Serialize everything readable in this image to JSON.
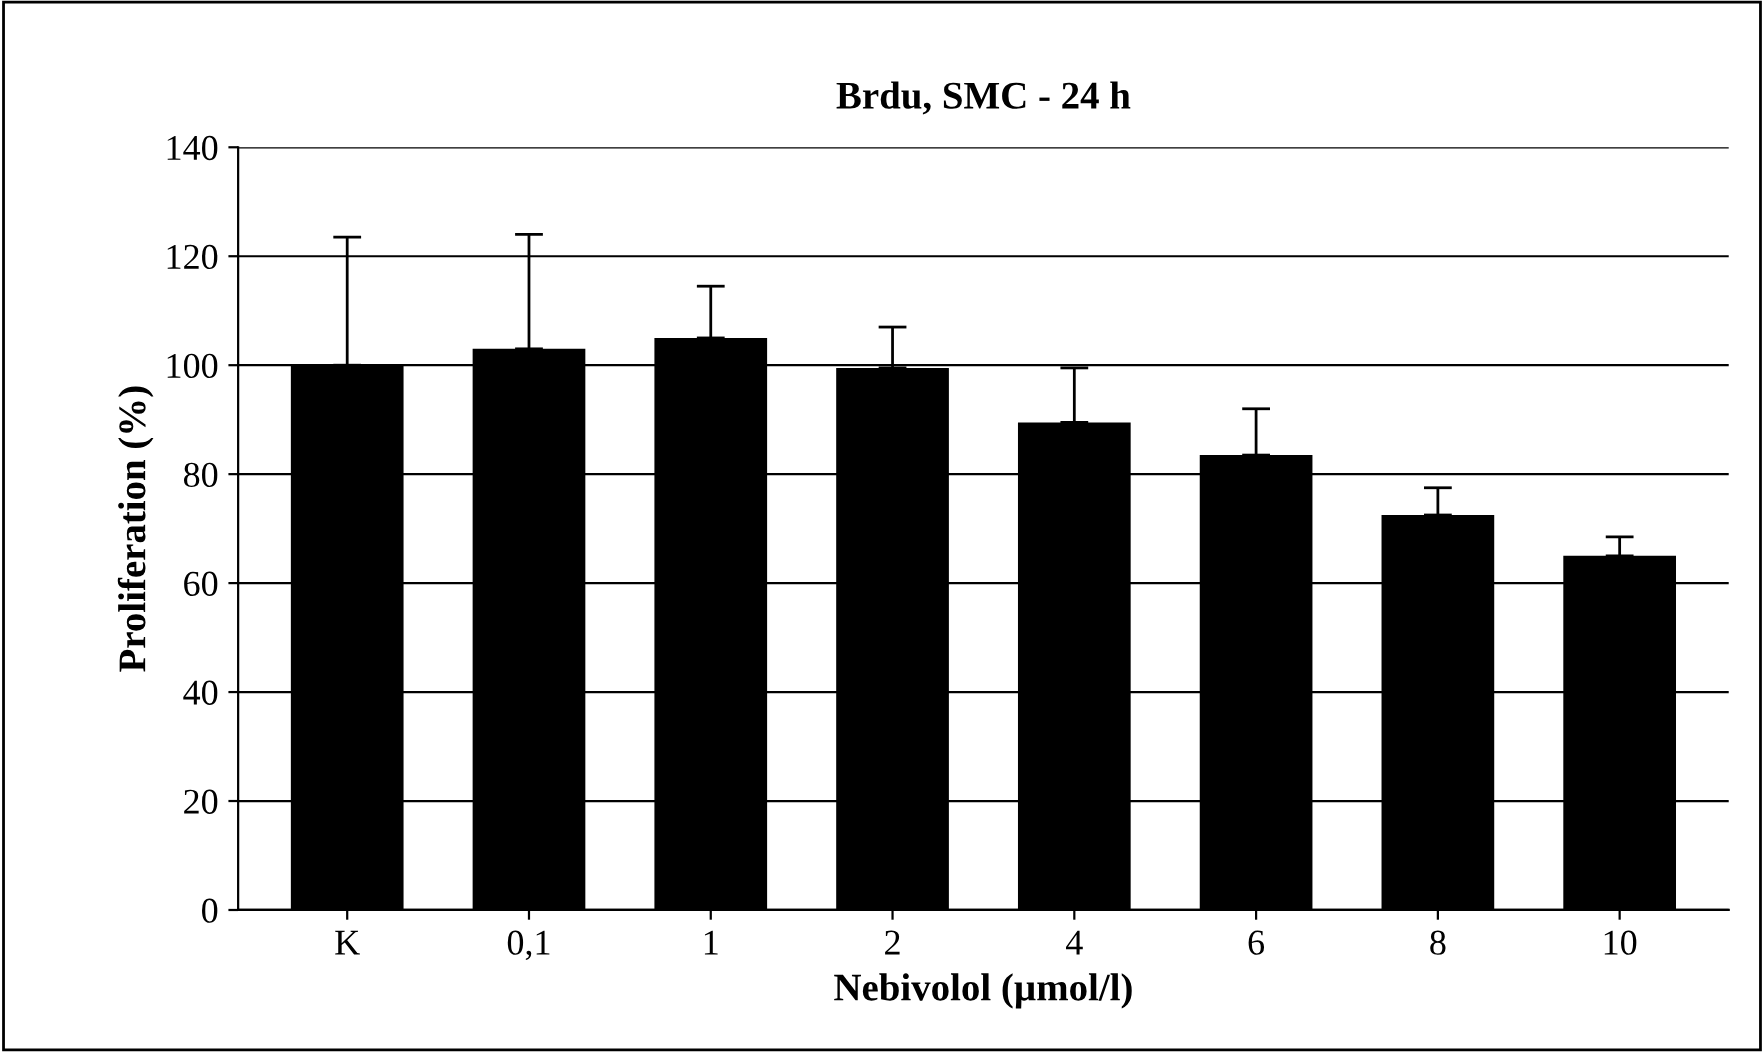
{
  "chart_data": {
    "type": "bar",
    "title": "Brdu, SMC - 24 h",
    "xlabel": "Nebivolol (µmol/l)",
    "ylabel": "Proliferation (%)",
    "categories": [
      "K",
      "0,1",
      "1",
      "2",
      "4",
      "6",
      "8",
      "10"
    ],
    "values": [
      100,
      103,
      105,
      99.5,
      89.5,
      83.5,
      72.5,
      65
    ],
    "errors": [
      [
        100,
        123.5
      ],
      [
        103,
        124
      ],
      [
        105,
        114.5
      ],
      [
        99.5,
        107
      ],
      [
        89.5,
        99.5
      ],
      [
        83.5,
        92
      ],
      [
        72.5,
        77.5
      ],
      [
        65,
        68.5
      ]
    ],
    "color": "#000000",
    "ylim": [
      0,
      140
    ],
    "yticks": [
      0,
      20,
      40,
      60,
      80,
      100,
      120,
      140
    ],
    "grid": "y",
    "legend": false
  }
}
